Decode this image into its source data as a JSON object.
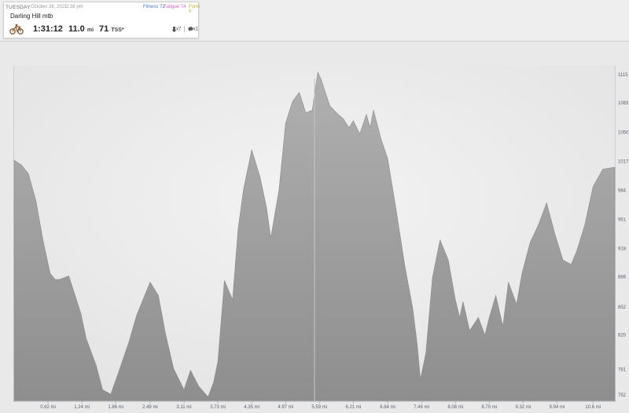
{
  "workout": {
    "day": "TUESDAY",
    "date": "October 26, 2021",
    "time": "2:38 pm",
    "fitness": "Fitness 72",
    "fatigue": "Fatigue 74",
    "form": "Form 0",
    "title": "Darling Hill mtb",
    "duration": "1:31:12",
    "distance": "11.0",
    "distance_unit": "mi",
    "tss": "71",
    "tss_unit": "TSS*",
    "icon_count_1": "x7",
    "icon_count_2": "x1"
  },
  "colors": {
    "area_fill": "#9a9a9a",
    "background": "#e9e9e9",
    "axis_text": "#5a6170"
  },
  "icons": [
    "bike-icon",
    "medal-icon",
    "comment-icon"
  ],
  "chart_data": {
    "type": "area",
    "title": "",
    "xlabel": "",
    "ylabel": "",
    "xlim": [
      0,
      11.0
    ],
    "x_unit": "mi",
    "x_ticks": [
      0.62,
      1.24,
      1.86,
      2.49,
      3.11,
      3.73,
      4.35,
      4.97,
      5.59,
      6.21,
      6.84,
      7.46,
      8.08,
      8.7,
      9.32,
      9.94,
      10.6
    ],
    "x_tick_labels": [
      "0.62 mi",
      "1.24 mi",
      "1.86 mi",
      "2.49 mi",
      "3.11 mi",
      "3.73 mi",
      "4.35 mi",
      "4.97 mi",
      "5.59 mi",
      "6.21 mi",
      "6.84 mi",
      "7.46 mi",
      "8.08 mi",
      "8.70 mi",
      "9.32 mi",
      "9.94 mi",
      "10.6 mi"
    ],
    "y_ticks": [
      752,
      781,
      820,
      852,
      886,
      918,
      951,
      984,
      1017,
      1050,
      1083,
      1115
    ],
    "y_tick_labels": [
      "752",
      "781",
      "820",
      "852",
      "886",
      "918",
      "951",
      "984",
      "1017",
      "1050",
      "1083",
      "1115"
    ],
    "ylim": [
      745,
      1125
    ],
    "x": [
      0,
      0.13,
      0.26,
      0.4,
      0.53,
      0.66,
      0.75,
      0.83,
      1.0,
      1.08,
      1.22,
      1.32,
      1.5,
      1.62,
      1.77,
      1.9,
      2.1,
      2.24,
      2.49,
      2.64,
      2.77,
      2.92,
      3.11,
      3.23,
      3.38,
      3.55,
      3.65,
      3.73,
      3.85,
      4.0,
      4.1,
      4.2,
      4.35,
      4.5,
      4.62,
      4.7,
      4.85,
      4.97,
      5.1,
      5.22,
      5.34,
      5.46,
      5.56,
      5.62,
      5.7,
      5.78,
      5.9,
      6.03,
      6.13,
      6.21,
      6.33,
      6.45,
      6.52,
      6.58,
      6.72,
      6.84,
      7.0,
      7.15,
      7.3,
      7.38,
      7.44,
      7.54,
      7.66,
      7.8,
      7.95,
      8.08,
      8.16,
      8.22,
      8.34,
      8.5,
      8.62,
      8.7,
      8.82,
      8.95,
      9.05,
      9.2,
      9.3,
      9.45,
      9.6,
      9.75,
      9.9,
      10.05,
      10.2,
      10.3,
      10.45,
      10.6,
      10.78,
      10.98,
      11.0
    ],
    "elevation": [
      1018,
      1013,
      1003,
      972,
      927,
      890,
      883,
      883,
      887,
      872,
      845,
      816,
      786,
      758,
      753,
      776,
      812,
      842,
      880,
      865,
      822,
      782,
      758,
      780,
      762,
      750,
      766,
      790,
      882,
      860,
      940,
      985,
      1030,
      1000,
      965,
      930,
      985,
      1060,
      1085,
      1095,
      1072,
      1075,
      1118,
      1110,
      1095,
      1080,
      1072,
      1065,
      1055,
      1063,
      1048,
      1070,
      1055,
      1075,
      1042,
      1020,
      960,
      900,
      850,
      810,
      770,
      800,
      885,
      928,
      905,
      860,
      840,
      858,
      825,
      840,
      820,
      840,
      865,
      830,
      880,
      855,
      890,
      925,
      945,
      970,
      935,
      905,
      900,
      915,
      945,
      988,
      1008,
      1010,
      1010
    ]
  }
}
